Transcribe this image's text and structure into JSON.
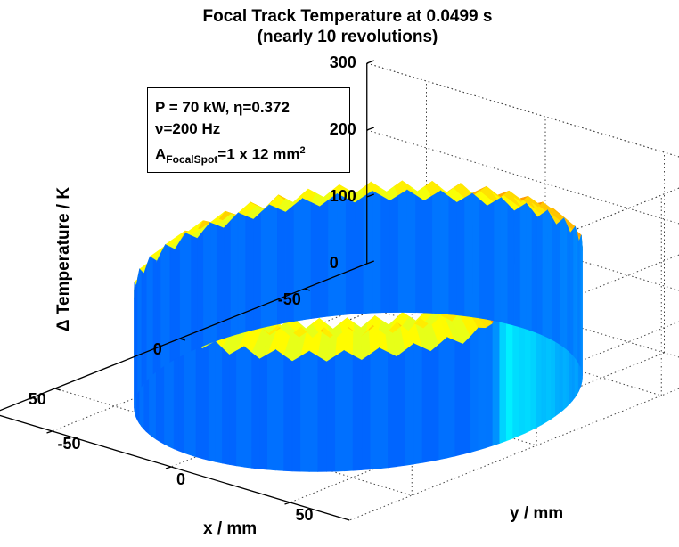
{
  "chart_data": {
    "type": "surface3d",
    "title": "Focal Track Temperature at 0.0499 s",
    "subtitle": "(nearly 10 revolutions)",
    "annotation": {
      "line1": "P = 70 kW, η=0.372",
      "line2": "ν=200 Hz",
      "line3_prefix": "A",
      "line3_sub": "FocalSpot",
      "line3_mid": "=1 x 12 mm",
      "line3_sup": "2"
    },
    "xlabel": "x / mm",
    "ylabel": "y / mm",
    "zlabel": "Δ Temperature  / K",
    "xlim": [
      -75,
      75
    ],
    "ylim": [
      -75,
      75
    ],
    "zlim": [
      0,
      300
    ],
    "x_ticks": [
      "-50",
      "0",
      "50"
    ],
    "y_ticks": [
      "-50",
      "0",
      "50"
    ],
    "z_ticks": [
      "0",
      "100",
      "200",
      "300"
    ],
    "grid": true,
    "colormap": "jet",
    "ring": {
      "inner_radius": 45,
      "outer_radius": 65,
      "base_temperature": 200,
      "peak_temperature": 290
    }
  }
}
